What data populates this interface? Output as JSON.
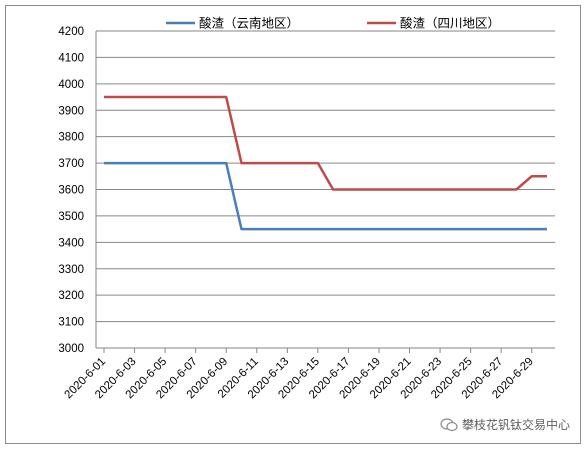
{
  "chart_data": {
    "type": "line",
    "title": "",
    "xlabel": "",
    "ylabel": "",
    "ylim": [
      3000,
      4200
    ],
    "y_ticks": [
      3000,
      3100,
      3200,
      3300,
      3400,
      3500,
      3600,
      3700,
      3800,
      3900,
      4000,
      4100,
      4200
    ],
    "x": [
      "2020-6-01",
      "2020-6-02",
      "2020-6-03",
      "2020-6-04",
      "2020-6-05",
      "2020-6-06",
      "2020-6-07",
      "2020-6-08",
      "2020-6-09",
      "2020-6-10",
      "2020-6-11",
      "2020-6-12",
      "2020-6-13",
      "2020-6-14",
      "2020-6-15",
      "2020-6-16",
      "2020-6-17",
      "2020-6-18",
      "2020-6-19",
      "2020-6-20",
      "2020-6-21",
      "2020-6-22",
      "2020-6-23",
      "2020-6-24",
      "2020-6-25",
      "2020-6-26",
      "2020-6-27",
      "2020-6-28",
      "2020-6-29",
      "2020-6-30"
    ],
    "x_tick_labels": [
      "2020-6-01",
      "2020-6-03",
      "2020-6-05",
      "2020-6-07",
      "2020-6-09",
      "2020-6-11",
      "2020-6-13",
      "2020-6-15",
      "2020-6-17",
      "2020-6-19",
      "2020-6-21",
      "2020-6-23",
      "2020-6-25",
      "2020-6-27",
      "2020-6-29"
    ],
    "series": [
      {
        "name": "酸渣（云南地区）",
        "color": "#4a7ebb",
        "values": [
          3700,
          3700,
          3700,
          3700,
          3700,
          3700,
          3700,
          3700,
          3700,
          3450,
          3450,
          3450,
          3450,
          3450,
          3450,
          3450,
          3450,
          3450,
          3450,
          3450,
          3450,
          3450,
          3450,
          3450,
          3450,
          3450,
          3450,
          3450,
          3450,
          3450
        ]
      },
      {
        "name": "酸渣（四川地区）",
        "color": "#be4b48",
        "values": [
          3950,
          3950,
          3950,
          3950,
          3950,
          3950,
          3950,
          3950,
          3950,
          3700,
          3700,
          3700,
          3700,
          3700,
          3700,
          3600,
          3600,
          3600,
          3600,
          3600,
          3600,
          3600,
          3600,
          3600,
          3600,
          3600,
          3600,
          3600,
          3650,
          3650
        ]
      }
    ],
    "grid": true,
    "gridline_color": "#868686",
    "legend_position": "top"
  },
  "watermark": {
    "text": "攀枝花钒钛交易中心",
    "icon": "wechat-icon"
  }
}
